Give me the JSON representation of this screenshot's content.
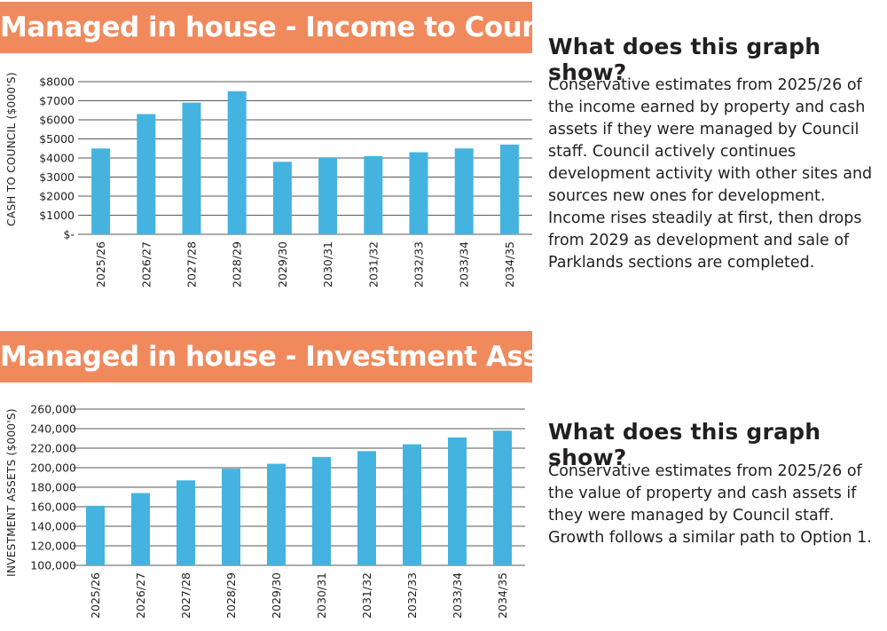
{
  "colors": {
    "banner": "#f08a5d",
    "bar": "#45b3e0",
    "grid": "#231f20"
  },
  "panels": [
    {
      "banner_title": "Managed in house - Income to Council",
      "question": "What does this graph show?",
      "description": "Conservative estimates from 2025/26 of the income earned by property and cash assets if they were managed by Council staff. Council actively continues development activity with other sites and sources new ones for development. Income rises steadily at first, then drops from 2029 as development and sale of Parklands sections are completed."
    },
    {
      "banner_title": "Managed in house - Investment Assets",
      "question": "What does this graph show?",
      "description": "Conservative estimates from 2025/26 of the value of property and cash assets if they were managed by Council staff. Growth follows a similar path to Option 1."
    }
  ],
  "chart_data": [
    {
      "type": "bar",
      "title": "Managed in house - Income to Council",
      "xlabel": "",
      "ylabel": "CASH TO COUNCIL ($000'S)",
      "categories": [
        "2025/26",
        "2026/27",
        "2027/28",
        "2028/29",
        "2029/30",
        "2030/31",
        "2031/32",
        "2032/33",
        "2033/34",
        "2034/35"
      ],
      "values": [
        4500,
        6300,
        6900,
        7500,
        3800,
        4000,
        4100,
        4300,
        4500,
        4700
      ],
      "ylim": [
        0,
        8000
      ],
      "yticks": [
        0,
        1000,
        2000,
        3000,
        4000,
        5000,
        6000,
        7000,
        8000
      ],
      "ytick_labels": [
        "$-",
        "$1000",
        "$2000",
        "$3000",
        "$4000",
        "$5000",
        "$6000",
        "$7000",
        "$8000"
      ],
      "grid": true
    },
    {
      "type": "bar",
      "title": "Managed in house - Investment Assets",
      "xlabel": "",
      "ylabel": "INVESTMENT ASSETS ($000'S)",
      "categories": [
        "2025/26",
        "2026/27",
        "2027/28",
        "2028/29",
        "2029/30",
        "2030/31",
        "2031/32",
        "2032/33",
        "2033/34",
        "2034/35"
      ],
      "values": [
        161000,
        174000,
        187000,
        199000,
        204000,
        211000,
        217000,
        224000,
        231000,
        238000
      ],
      "ylim": [
        100000,
        260000
      ],
      "yticks": [
        100000,
        120000,
        140000,
        160000,
        180000,
        200000,
        220000,
        240000,
        260000
      ],
      "ytick_labels": [
        "100,000",
        "120,000",
        "140,000",
        "160,000",
        "180,000",
        "200,000",
        "220,000",
        "240,000",
        "260,000"
      ],
      "grid": true
    }
  ]
}
